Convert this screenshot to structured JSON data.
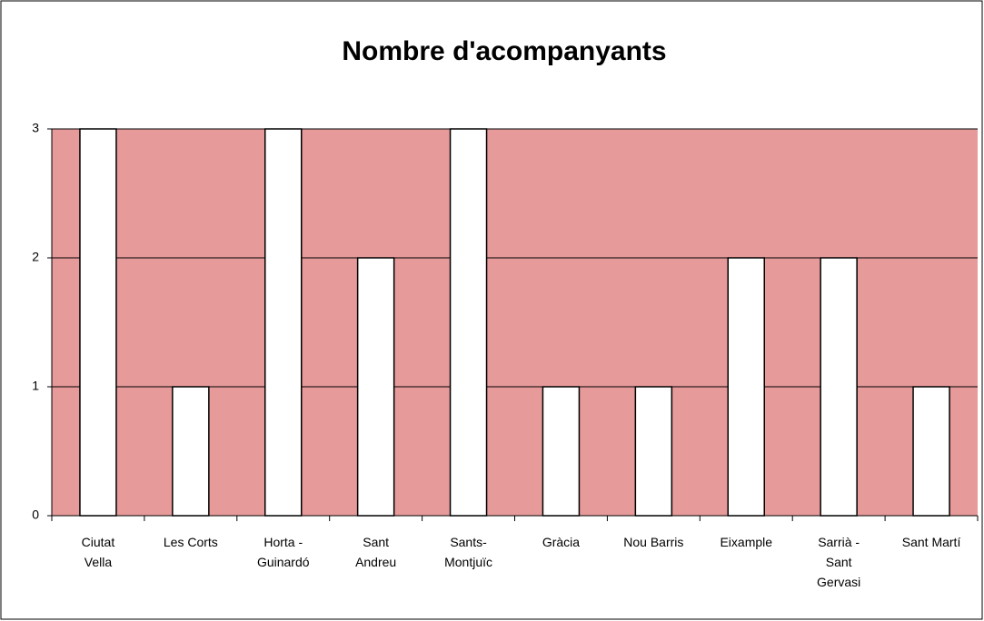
{
  "chart_data": {
    "type": "bar",
    "title": "Nombre d'acompanyants",
    "categories": [
      "Ciutat Vella",
      "Les Corts",
      "Horta - Guinardó",
      "Sant Andreu",
      "Sants-Montjuïc",
      "Gràcia",
      "Nou Barris",
      "Eixample",
      "Sarrià - Sant Gervasi",
      "Sant Martí"
    ],
    "values": [
      3,
      1,
      3,
      2,
      3,
      1,
      1,
      2,
      2,
      1
    ],
    "color": "#ffffff",
    "plot_background": "#e69a9a",
    "ylim": [
      0,
      3
    ],
    "yticks": [
      0,
      1,
      2,
      3
    ],
    "grid": true
  }
}
